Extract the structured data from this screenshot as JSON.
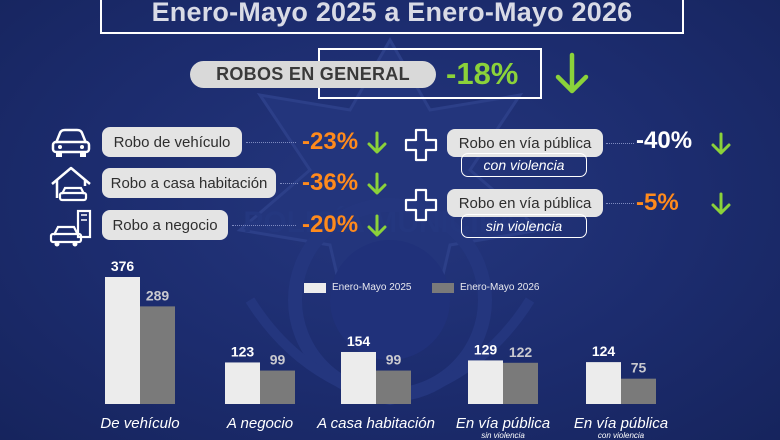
{
  "title": "Enero-Mayo 2025 a Enero-Mayo 2026",
  "general": {
    "label": "ROBOS EN GENERAL",
    "change": "-18%"
  },
  "categories_left": [
    {
      "label": "Robo de vehículo",
      "change": "-23%",
      "icon": "car-icon"
    },
    {
      "label": "Robo a casa habitación",
      "change": "-36%",
      "icon": "house-car-icon"
    },
    {
      "label": "Robo a negocio",
      "change": "-20%",
      "icon": "store-car-icon"
    }
  ],
  "categories_right": [
    {
      "label": "Robo en vía pública",
      "sub": "con violencia",
      "change": "-40%",
      "icon": "plus-cross-icon"
    },
    {
      "label": "Robo en vía pública",
      "sub": "sin violencia",
      "change": "-5%",
      "icon": "plus-cross-icon"
    }
  ],
  "watermark_text": "POLICÍA MUNICIPAL",
  "colors": {
    "background": "#1b2b6b",
    "bar_2025": "#ececec",
    "bar_2026": "#7a7a7a",
    "down_arrow": "#8bd23a",
    "change_orange": "#ff8a1c",
    "change_green": "#8bd23a"
  },
  "chart_data": {
    "type": "bar",
    "categories": [
      "De vehículo",
      "A negocio",
      "A casa habitación",
      "En vía pública",
      "En vía pública"
    ],
    "category_sublabels": [
      "",
      "",
      "",
      "sin violencia",
      "con violencia"
    ],
    "series": [
      {
        "name": "Enero-Mayo 2025",
        "values": [
          376,
          123,
          154,
          129,
          124
        ]
      },
      {
        "name": "Enero-Mayo 2026",
        "values": [
          289,
          99,
          99,
          122,
          75
        ]
      }
    ],
    "legend_position": "top-right",
    "grid": false
  }
}
